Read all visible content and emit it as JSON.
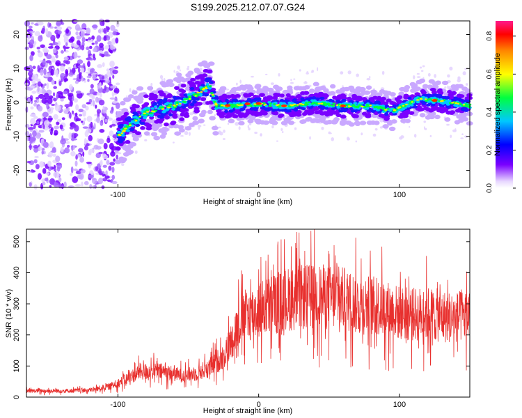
{
  "title": "S199.2025.212.07.07.G24",
  "chart_data": [
    {
      "type": "heatmap",
      "xlabel": "Height of straight line (km)",
      "ylabel": "Frequency (Hz)",
      "xlim": [
        -165,
        150
      ],
      "ylim": [
        -25,
        24
      ],
      "xticks": [
        "-100",
        "0",
        "100"
      ],
      "yticks": [
        "-20",
        "-10",
        "0",
        "10",
        "20"
      ],
      "ridge": [
        {
          "x": -100,
          "y": -10
        },
        {
          "x": -90,
          "y": -6
        },
        {
          "x": -80,
          "y": -3
        },
        {
          "x": -60,
          "y": -1
        },
        {
          "x": -45,
          "y": 2
        },
        {
          "x": -35,
          "y": 5
        },
        {
          "x": -30,
          "y": -1
        },
        {
          "x": -20,
          "y": -1
        },
        {
          "x": 0,
          "y": -0.5
        },
        {
          "x": 20,
          "y": -1
        },
        {
          "x": 40,
          "y": 0
        },
        {
          "x": 60,
          "y": -1
        },
        {
          "x": 80,
          "y": -1
        },
        {
          "x": 95,
          "y": -2.5
        },
        {
          "x": 115,
          "y": 1
        },
        {
          "x": 130,
          "y": 0.5
        },
        {
          "x": 150,
          "y": -1
        }
      ],
      "colorbar": {
        "label": "Normalized spectral amplitude",
        "ticks": [
          "0.0",
          "0.2",
          "0.4",
          "0.6",
          "0.8"
        ],
        "range": [
          0,
          0.88
        ]
      }
    },
    {
      "type": "line",
      "xlabel": "Height of straight line (km)",
      "ylabel": "SNR (10 * v/v)",
      "xlim": [
        -165,
        150
      ],
      "ylim": [
        0,
        540
      ],
      "xticks": [
        "-100",
        "0",
        "100"
      ],
      "yticks": [
        "0",
        "100",
        "200",
        "300",
        "400",
        "500"
      ],
      "color": "#e8302e",
      "series": [
        {
          "x": [
            -165,
            -140,
            -120,
            -105,
            -95,
            -85,
            -75,
            -65,
            -55,
            -45,
            -35,
            -25,
            -20,
            -15,
            -10,
            -5,
            0,
            10,
            20,
            30,
            40,
            50,
            60,
            70,
            80,
            90,
            100,
            110,
            120,
            130,
            140,
            150
          ],
          "values": [
            20,
            20,
            22,
            35,
            55,
            80,
            85,
            80,
            70,
            75,
            95,
            130,
            175,
            230,
            260,
            270,
            280,
            300,
            315,
            320,
            325,
            320,
            315,
            300,
            295,
            285,
            270,
            265,
            270,
            260,
            255,
            265
          ]
        }
      ]
    }
  ]
}
